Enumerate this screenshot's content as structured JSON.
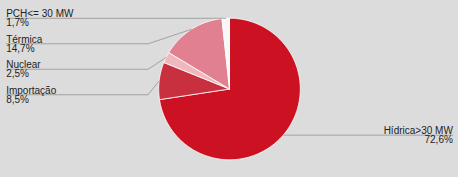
{
  "chart_data": {
    "type": "pie",
    "categories": [
      "Hídrica>30 MW",
      "Importação",
      "Nuclear",
      "Térmica",
      "PCH<= 30 MW"
    ],
    "values": [
      72.6,
      8.5,
      2.5,
      14.7,
      1.7
    ],
    "value_labels": [
      "72,6%",
      "8,5%",
      "2,5%",
      "14,7%",
      "1,7%"
    ],
    "colors": [
      "#cc1122",
      "#c83040",
      "#f0b8be",
      "#e08090",
      "#f8f8f8"
    ],
    "data_labels": true
  }
}
